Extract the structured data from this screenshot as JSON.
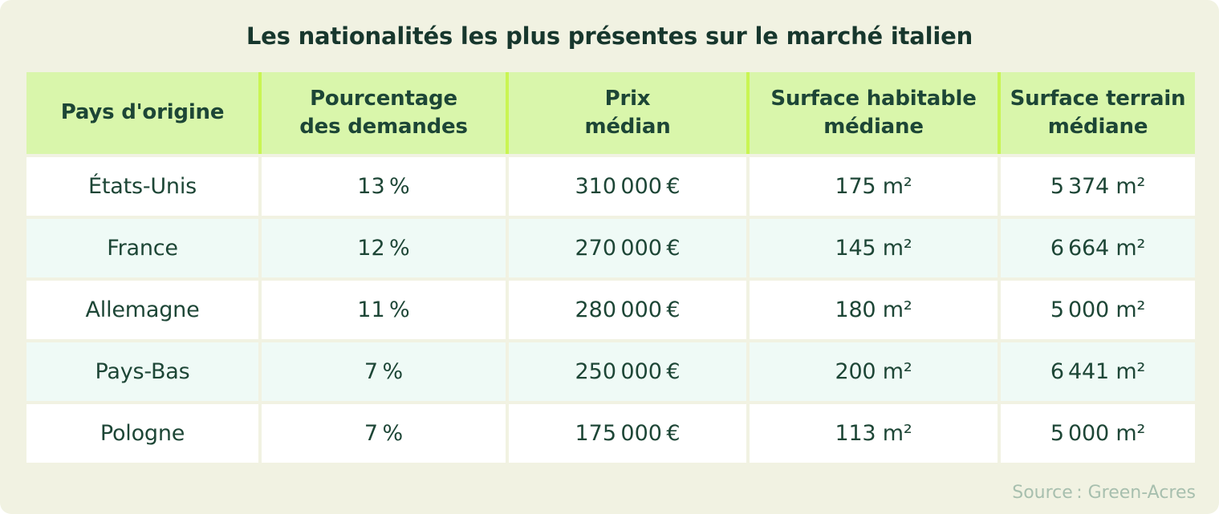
{
  "colors": {
    "canvas_background": "#f1f2e2",
    "header_cell_background": "#d9f6ab",
    "header_separator_lime": "#c9f552",
    "row_white": "#ffffff",
    "row_mint": "#effaf6",
    "text_dark_green": "#1d4636",
    "source_text": "#a7bfae"
  },
  "chart_data": {
    "type": "table",
    "title": "Les nationalités les plus présentes sur le marché italien",
    "columns": [
      "Pays d'origine",
      "Pourcentage des demandes",
      "Prix médian",
      "Surface habitable médiane",
      "Surface terrain médiane"
    ],
    "columns_display": [
      "Pays d'origine",
      "Pourcentage\ndes demandes",
      "Prix\nmédian",
      "Surface habitable\nmédiane",
      "Surface terrain\nmédiane"
    ],
    "rows": [
      [
        "États-Unis",
        "13 %",
        "310 000 €",
        "175 m²",
        "5 374 m²"
      ],
      [
        "France",
        "12 %",
        "270 000 €",
        "145 m²",
        "6 664 m²"
      ],
      [
        "Allemagne",
        "11 %",
        "280 000 €",
        "180 m²",
        "5 000 m²"
      ],
      [
        "Pays-Bas",
        "7 %",
        "250 000 €",
        "200 m²",
        "6 441 m²"
      ],
      [
        "Pologne",
        "7 %",
        "175 000 €",
        "113 m²",
        "5 000 m²"
      ]
    ],
    "source": "Source : Green-Acres"
  }
}
